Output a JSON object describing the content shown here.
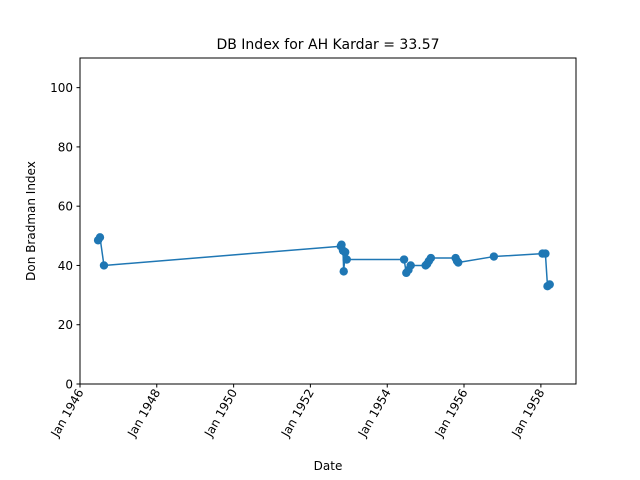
{
  "chart_data": {
    "type": "line",
    "title": "DB Index for AH Kardar = 33.57",
    "xlabel": "Date",
    "ylabel": "Don Bradman Index",
    "ylim": [
      0,
      110
    ],
    "y_ticks": [
      0,
      20,
      40,
      60,
      80,
      100
    ],
    "x_ticks": [
      "Jan 1946",
      "Jan 1948",
      "Jan 1950",
      "Jan 1952",
      "Jan 1954",
      "Jan 1956",
      "Jan 1958"
    ],
    "x_range": [
      "1946-01-01",
      "1958-12-01"
    ],
    "grid": false,
    "marker": "circle",
    "color": "#1f77b4",
    "series": [
      {
        "points": [
          {
            "x": "1946-06-22",
            "y": 48.5
          },
          {
            "x": "1946-07-10",
            "y": 49.5
          },
          {
            "x": "1946-08-17",
            "y": 40.0
          },
          {
            "x": "1952-10-16",
            "y": 46.5
          },
          {
            "x": "1952-10-23",
            "y": 47.0
          },
          {
            "x": "1952-11-06",
            "y": 45.0
          },
          {
            "x": "1952-11-13",
            "y": 38.0
          },
          {
            "x": "1952-11-27",
            "y": 44.5
          },
          {
            "x": "1952-12-12",
            "y": 42.0
          },
          {
            "x": "1954-06-10",
            "y": 42.0
          },
          {
            "x": "1954-07-01",
            "y": 37.5
          },
          {
            "x": "1954-07-22",
            "y": 38.5
          },
          {
            "x": "1954-08-12",
            "y": 40.0
          },
          {
            "x": "1955-01-01",
            "y": 40.0
          },
          {
            "x": "1955-01-15",
            "y": 40.5
          },
          {
            "x": "1955-02-01",
            "y": 41.5
          },
          {
            "x": "1955-02-20",
            "y": 42.5
          },
          {
            "x": "1955-10-13",
            "y": 42.5
          },
          {
            "x": "1955-10-26",
            "y": 41.5
          },
          {
            "x": "1955-11-07",
            "y": 41.0
          },
          {
            "x": "1956-10-11",
            "y": 43.0
          },
          {
            "x": "1958-01-17",
            "y": 44.0
          },
          {
            "x": "1958-02-13",
            "y": 44.0
          },
          {
            "x": "1958-03-05",
            "y": 33.0
          },
          {
            "x": "1958-03-26",
            "y": 33.57
          }
        ]
      }
    ]
  }
}
